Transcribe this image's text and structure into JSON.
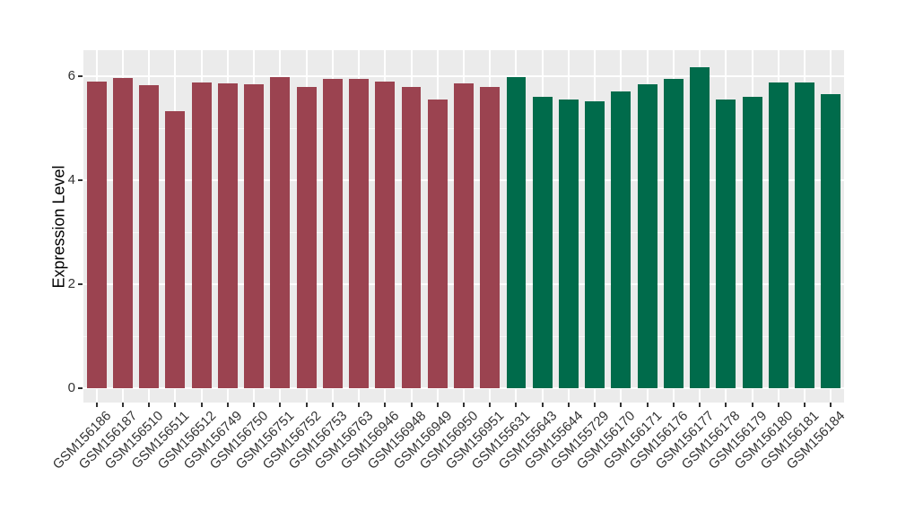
{
  "chart_data": {
    "type": "bar",
    "title": "",
    "xlabel": "",
    "ylabel": "Expression Level",
    "ylim": [
      0,
      6.5
    ],
    "yticks": [
      0,
      2,
      4,
      6
    ],
    "yticks_minor": [
      1,
      3,
      5
    ],
    "grid": "major and minor horizontal + major vertical white gridlines on gray panel",
    "legend_position": "none",
    "categories": [
      "GSM156186",
      "GSM156187",
      "GSM156510",
      "GSM156511",
      "GSM156512",
      "GSM156749",
      "GSM156750",
      "GSM156751",
      "GSM156752",
      "GSM156753",
      "GSM156763",
      "GSM156946",
      "GSM156948",
      "GSM156949",
      "GSM156950",
      "GSM156951",
      "GSM155631",
      "GSM155643",
      "GSM155644",
      "GSM155729",
      "GSM156170",
      "GSM156171",
      "GSM156176",
      "GSM156177",
      "GSM156178",
      "GSM156179",
      "GSM156180",
      "GSM156181",
      "GSM156184"
    ],
    "values": [
      5.9,
      5.97,
      5.83,
      5.33,
      5.88,
      5.86,
      5.85,
      5.98,
      5.8,
      5.94,
      5.94,
      5.9,
      5.8,
      5.55,
      5.87,
      5.8,
      5.98,
      5.61,
      5.56,
      5.52,
      5.71,
      5.85,
      5.95,
      6.17,
      5.56,
      5.6,
      5.88,
      5.88,
      5.66
    ],
    "bar_groups": [
      "group1",
      "group1",
      "group1",
      "group1",
      "group1",
      "group1",
      "group1",
      "group1",
      "group1",
      "group1",
      "group1",
      "group1",
      "group1",
      "group1",
      "group1",
      "group1",
      "group2",
      "group2",
      "group2",
      "group2",
      "group2",
      "group2",
      "group2",
      "group2",
      "group2",
      "group2",
      "group2",
      "group2",
      "group2"
    ],
    "group_colors": {
      "group1": "#9B4350",
      "group2": "#006B4B"
    }
  },
  "colors": {
    "panel_background": "#EBEBEB",
    "gridline": "#FFFFFF",
    "axis_text": "#333333",
    "bar_maroon": "#9B4350",
    "bar_green": "#006B4B"
  }
}
